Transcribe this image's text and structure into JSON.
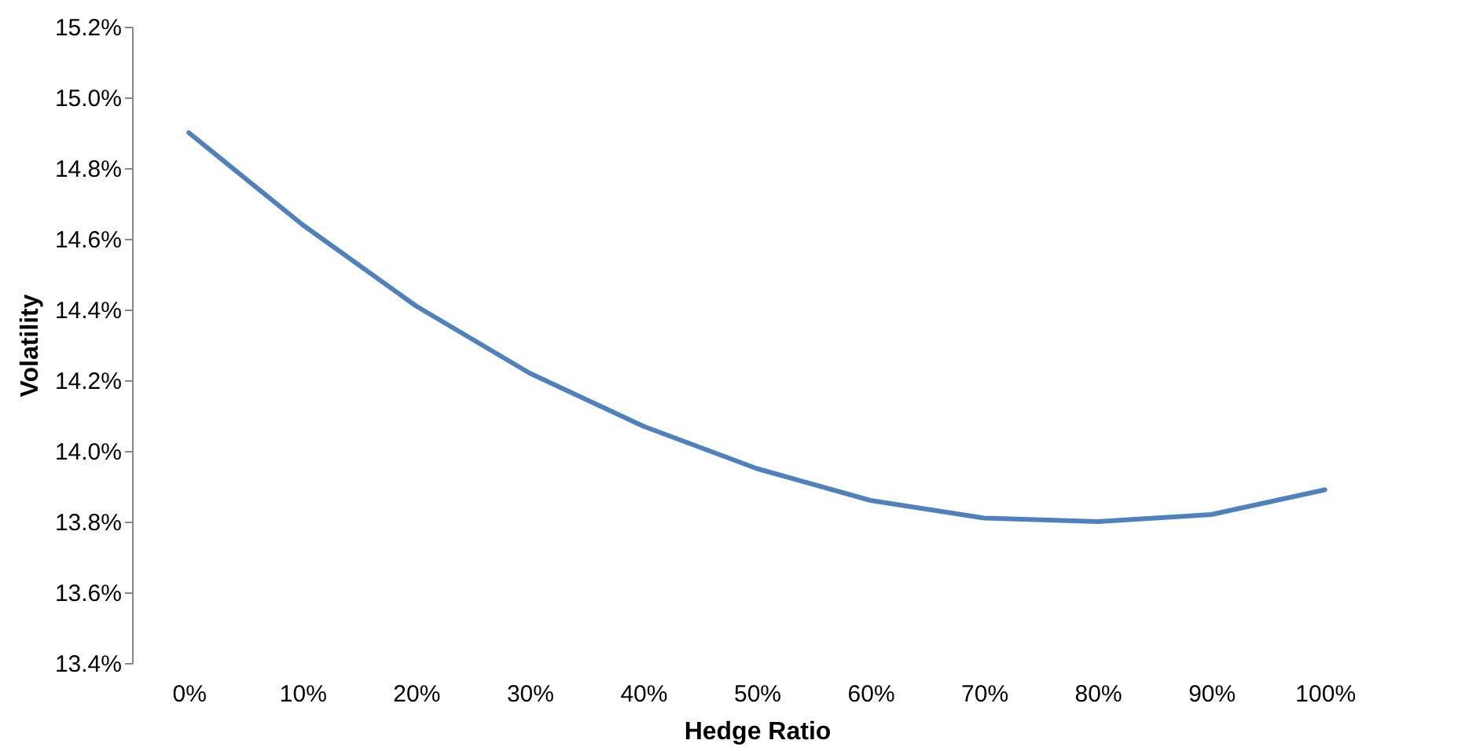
{
  "chart_data": {
    "type": "line",
    "xlabel": "Hedge Ratio",
    "ylabel": "Volatility",
    "categories": [
      "0%",
      "10%",
      "20%",
      "30%",
      "40%",
      "50%",
      "60%",
      "70%",
      "80%",
      "90%",
      "100%"
    ],
    "series": [
      {
        "color": "#4f81bd",
        "values": [
          14.9,
          14.64,
          14.41,
          14.22,
          14.07,
          13.95,
          13.86,
          13.81,
          13.8,
          13.82,
          13.89
        ]
      }
    ],
    "ylim": [
      13.4,
      15.2
    ],
    "yticks": [
      {
        "value": 13.4,
        "label": "13.4%"
      },
      {
        "value": 13.6,
        "label": "13.6%"
      },
      {
        "value": 13.8,
        "label": "13.8%"
      },
      {
        "value": 14.0,
        "label": "14.0%"
      },
      {
        "value": 14.2,
        "label": "14.2%"
      },
      {
        "value": 14.4,
        "label": "14.4%"
      },
      {
        "value": 14.6,
        "label": "14.6%"
      },
      {
        "value": 14.8,
        "label": "14.8%"
      },
      {
        "value": 15.0,
        "label": "15.0%"
      },
      {
        "value": 15.2,
        "label": "15.2%"
      }
    ],
    "grid": false,
    "marker": "none",
    "line_style": "solid"
  }
}
